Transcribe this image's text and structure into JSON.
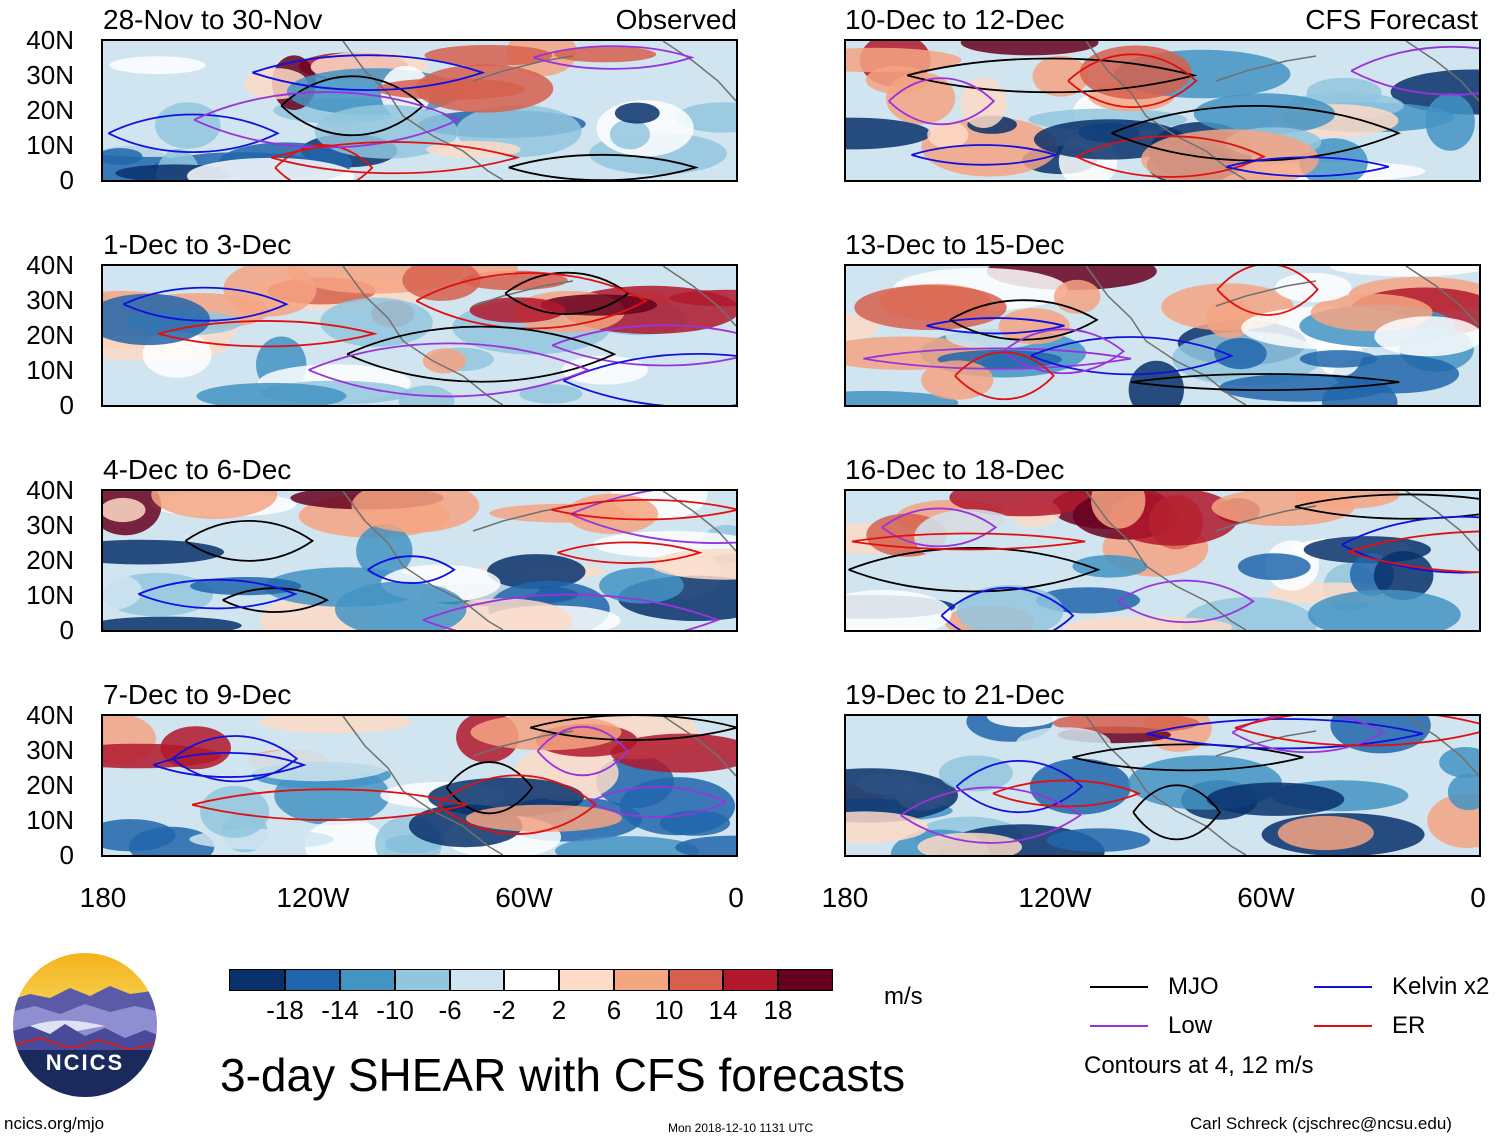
{
  "observed_label": "Observed",
  "forecast_label": "CFS Forecast",
  "panels_left": [
    {
      "title": "28-Nov to 30-Nov"
    },
    {
      "title": "1-Dec to 3-Dec"
    },
    {
      "title": "4-Dec to 6-Dec"
    },
    {
      "title": "7-Dec to 9-Dec"
    }
  ],
  "panels_right": [
    {
      "title": "10-Dec to 12-Dec"
    },
    {
      "title": "13-Dec to 15-Dec"
    },
    {
      "title": "16-Dec to 18-Dec"
    },
    {
      "title": "19-Dec to 21-Dec"
    }
  ],
  "lat_labels": [
    "40N",
    "30N",
    "20N",
    "10N",
    "0"
  ],
  "lon_labels": [
    "180",
    "120W",
    "60W",
    "0"
  ],
  "colorbar": {
    "units": "m/s",
    "labels": [
      "-18",
      "-14",
      "-10",
      "-6",
      "-2",
      "2",
      "6",
      "10",
      "14",
      "18"
    ],
    "colors": [
      "#08306b",
      "#2166ac",
      "#4393c3",
      "#92c5de",
      "#d1e5f0",
      "#ffffff",
      "#fddbc7",
      "#f4a582",
      "#d6604d",
      "#b2182b",
      "#67001f"
    ]
  },
  "legend": {
    "items": [
      {
        "label": "MJO",
        "color": "#000000"
      },
      {
        "label": "Kelvin x2",
        "color": "#1010e0"
      },
      {
        "label": "Low",
        "color": "#9933dd"
      },
      {
        "label": "ER",
        "color": "#e01010"
      }
    ],
    "contours_note": "Contours at 4, 12 m/s"
  },
  "main_title": "3-day SHEAR with CFS forecasts",
  "logo_text": "NCICS",
  "footer": {
    "website": "ncics.org/mjo",
    "timestamp": "Mon 2018-12-10 1131 UTC",
    "author": "Carl Schreck (cjschrec@ncsu.edu)"
  }
}
